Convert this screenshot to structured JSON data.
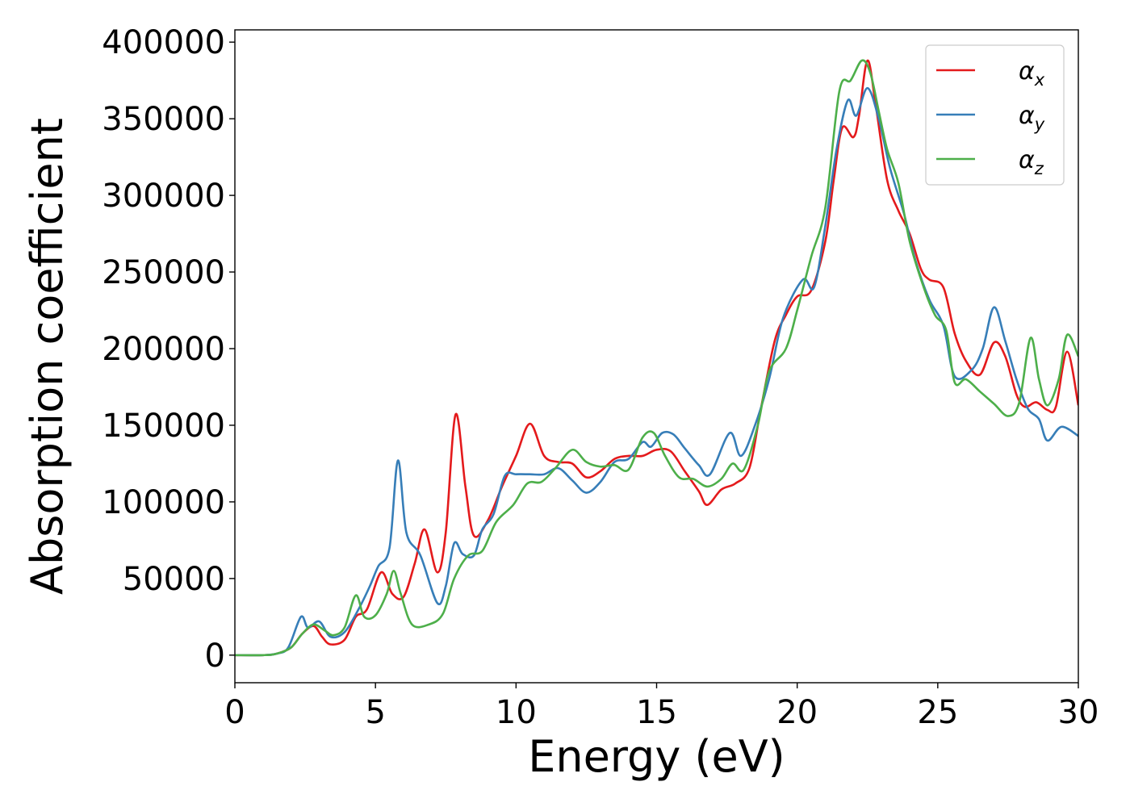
{
  "chart_data": {
    "type": "line",
    "title": "",
    "xlabel": "Energy (eV)",
    "ylabel": "Absorption coefficient",
    "xlim": [
      0,
      30
    ],
    "ylim": [
      -18000,
      408000
    ],
    "xticks": [
      0,
      5,
      10,
      15,
      20,
      25,
      30
    ],
    "yticks": [
      0,
      50000,
      100000,
      150000,
      200000,
      250000,
      300000,
      350000,
      400000
    ],
    "xtick_labels": [
      "0",
      "5",
      "10",
      "15",
      "20",
      "25",
      "30"
    ],
    "ytick_labels": [
      "0",
      "50000",
      "100000",
      "150000",
      "200000",
      "250000",
      "300000",
      "350000",
      "400000"
    ],
    "grid": false,
    "legend_position": "top-right",
    "series": [
      {
        "name": "αx",
        "symbol": "α",
        "subscript": "x",
        "color": "#e41a1c",
        "points": [
          [
            0,
            0
          ],
          [
            1,
            0
          ],
          [
            1.5,
            1000
          ],
          [
            2,
            5000
          ],
          [
            2.4,
            14000
          ],
          [
            2.8,
            19000
          ],
          [
            3.1,
            12000
          ],
          [
            3.4,
            7000
          ],
          [
            3.9,
            10000
          ],
          [
            4.3,
            25000
          ],
          [
            4.7,
            30000
          ],
          [
            5.2,
            54000
          ],
          [
            5.6,
            40000
          ],
          [
            6,
            38000
          ],
          [
            6.4,
            60000
          ],
          [
            6.75,
            82000
          ],
          [
            7.2,
            54000
          ],
          [
            7.5,
            80000
          ],
          [
            7.85,
            157000
          ],
          [
            8.2,
            110000
          ],
          [
            8.5,
            78000
          ],
          [
            9,
            88000
          ],
          [
            9.5,
            110000
          ],
          [
            10,
            130000
          ],
          [
            10.5,
            151000
          ],
          [
            11,
            130000
          ],
          [
            11.5,
            126000
          ],
          [
            12,
            125000
          ],
          [
            12.5,
            116000
          ],
          [
            13,
            120000
          ],
          [
            13.5,
            128000
          ],
          [
            14,
            130000
          ],
          [
            14.5,
            130000
          ],
          [
            15,
            134000
          ],
          [
            15.5,
            133000
          ],
          [
            16,
            120000
          ],
          [
            16.5,
            107000
          ],
          [
            16.8,
            98000
          ],
          [
            17.3,
            108000
          ],
          [
            17.8,
            112000
          ],
          [
            18.3,
            122000
          ],
          [
            18.7,
            160000
          ],
          [
            19.2,
            205000
          ],
          [
            19.6,
            222000
          ],
          [
            20,
            234000
          ],
          [
            20.5,
            238000
          ],
          [
            21,
            270000
          ],
          [
            21.3,
            310000
          ],
          [
            21.6,
            344000
          ],
          [
            22,
            338000
          ],
          [
            22.2,
            352000
          ],
          [
            22.5,
            388000
          ],
          [
            22.8,
            358000
          ],
          [
            23.2,
            310000
          ],
          [
            23.6,
            290000
          ],
          [
            24,
            275000
          ],
          [
            24.4,
            252000
          ],
          [
            24.7,
            245000
          ],
          [
            25.2,
            240000
          ],
          [
            25.6,
            210000
          ],
          [
            26,
            192000
          ],
          [
            26.5,
            183000
          ],
          [
            27,
            204000
          ],
          [
            27.4,
            195000
          ],
          [
            27.8,
            170000
          ],
          [
            28.1,
            162000
          ],
          [
            28.5,
            165000
          ],
          [
            28.9,
            160000
          ],
          [
            29.2,
            162000
          ],
          [
            29.6,
            198000
          ],
          [
            30,
            163000
          ]
        ]
      },
      {
        "name": "αy",
        "symbol": "α",
        "subscript": "y",
        "color": "#377eb8",
        "points": [
          [
            0,
            0
          ],
          [
            1,
            0
          ],
          [
            1.5,
            1000
          ],
          [
            1.9,
            5000
          ],
          [
            2.35,
            25000
          ],
          [
            2.6,
            18000
          ],
          [
            3,
            22000
          ],
          [
            3.4,
            12000
          ],
          [
            3.9,
            15000
          ],
          [
            4.4,
            30000
          ],
          [
            4.8,
            45000
          ],
          [
            5.1,
            58000
          ],
          [
            5.5,
            70000
          ],
          [
            5.8,
            127000
          ],
          [
            6.1,
            80000
          ],
          [
            6.6,
            65000
          ],
          [
            7.2,
            34000
          ],
          [
            7.5,
            45000
          ],
          [
            7.8,
            73000
          ],
          [
            8.1,
            66000
          ],
          [
            8.5,
            65000
          ],
          [
            8.8,
            82000
          ],
          [
            9.2,
            92000
          ],
          [
            9.6,
            117000
          ],
          [
            10,
            118000
          ],
          [
            10.5,
            118000
          ],
          [
            11,
            118000
          ],
          [
            11.5,
            122000
          ],
          [
            12,
            114000
          ],
          [
            12.5,
            106000
          ],
          [
            13,
            113000
          ],
          [
            13.5,
            126000
          ],
          [
            14,
            128000
          ],
          [
            14.5,
            139000
          ],
          [
            14.8,
            136000
          ],
          [
            15.2,
            145000
          ],
          [
            15.6,
            144000
          ],
          [
            16,
            135000
          ],
          [
            16.5,
            124000
          ],
          [
            16.9,
            118000
          ],
          [
            17.6,
            145000
          ],
          [
            18,
            130000
          ],
          [
            18.5,
            150000
          ],
          [
            19,
            180000
          ],
          [
            19.5,
            220000
          ],
          [
            20.2,
            245000
          ],
          [
            20.6,
            240000
          ],
          [
            21,
            280000
          ],
          [
            21.4,
            330000
          ],
          [
            21.8,
            362000
          ],
          [
            22.1,
            352000
          ],
          [
            22.5,
            370000
          ],
          [
            22.9,
            350000
          ],
          [
            23.3,
            318000
          ],
          [
            23.8,
            288000
          ],
          [
            24.2,
            258000
          ],
          [
            24.7,
            232000
          ],
          [
            25.2,
            215000
          ],
          [
            25.6,
            182000
          ],
          [
            26.2,
            186000
          ],
          [
            26.6,
            200000
          ],
          [
            27,
            227000
          ],
          [
            27.4,
            205000
          ],
          [
            27.8,
            180000
          ],
          [
            28.2,
            161000
          ],
          [
            28.6,
            154000
          ],
          [
            28.9,
            140000
          ],
          [
            29.4,
            149000
          ],
          [
            30,
            143000
          ]
        ]
      },
      {
        "name": "αz",
        "symbol": "α",
        "subscript": "z",
        "color": "#4daf4a",
        "points": [
          [
            0,
            0
          ],
          [
            1,
            0
          ],
          [
            1.5,
            1000
          ],
          [
            2,
            5000
          ],
          [
            2.4,
            14000
          ],
          [
            2.8,
            20000
          ],
          [
            3.2,
            16000
          ],
          [
            3.5,
            13000
          ],
          [
            3.9,
            18000
          ],
          [
            4.3,
            39000
          ],
          [
            4.6,
            25000
          ],
          [
            5,
            26000
          ],
          [
            5.4,
            40000
          ],
          [
            5.65,
            55000
          ],
          [
            5.9,
            40000
          ],
          [
            6.3,
            20000
          ],
          [
            6.9,
            20000
          ],
          [
            7.4,
            27000
          ],
          [
            7.8,
            50000
          ],
          [
            8.3,
            65000
          ],
          [
            8.8,
            68000
          ],
          [
            9.3,
            87000
          ],
          [
            9.9,
            98000
          ],
          [
            10.4,
            112000
          ],
          [
            10.9,
            113000
          ],
          [
            11.4,
            122000
          ],
          [
            12,
            134000
          ],
          [
            12.5,
            126000
          ],
          [
            13,
            123000
          ],
          [
            13.5,
            124000
          ],
          [
            14,
            121000
          ],
          [
            14.5,
            142000
          ],
          [
            14.9,
            145000
          ],
          [
            15.3,
            130000
          ],
          [
            15.8,
            116000
          ],
          [
            16.3,
            115000
          ],
          [
            16.8,
            110000
          ],
          [
            17.3,
            115000
          ],
          [
            17.7,
            125000
          ],
          [
            18.1,
            121000
          ],
          [
            18.6,
            150000
          ],
          [
            19,
            185000
          ],
          [
            19.6,
            200000
          ],
          [
            20,
            225000
          ],
          [
            20.5,
            260000
          ],
          [
            21,
            292000
          ],
          [
            21.5,
            368000
          ],
          [
            21.9,
            375000
          ],
          [
            22.3,
            388000
          ],
          [
            22.6,
            380000
          ],
          [
            22.9,
            355000
          ],
          [
            23.2,
            330000
          ],
          [
            23.6,
            308000
          ],
          [
            24,
            270000
          ],
          [
            24.5,
            240000
          ],
          [
            24.9,
            222000
          ],
          [
            25.3,
            212000
          ],
          [
            25.6,
            178000
          ],
          [
            26,
            180000
          ],
          [
            26.5,
            172000
          ],
          [
            27,
            164000
          ],
          [
            27.5,
            156000
          ],
          [
            27.9,
            165000
          ],
          [
            28.3,
            207000
          ],
          [
            28.6,
            180000
          ],
          [
            28.9,
            163000
          ],
          [
            29.3,
            180000
          ],
          [
            29.6,
            209000
          ],
          [
            30,
            195000
          ]
        ]
      }
    ]
  }
}
